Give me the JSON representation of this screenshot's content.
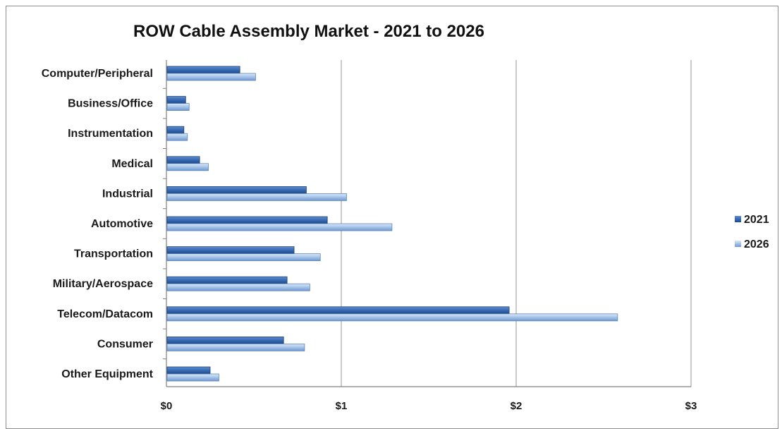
{
  "chart_data": {
    "type": "bar",
    "orientation": "horizontal",
    "title": "ROW Cable Assembly Market - 2021 to 2026",
    "xlabel": "",
    "ylabel": "",
    "xlim": [
      0,
      3
    ],
    "x_ticks": [
      "$0",
      "$1",
      "$2",
      "$3"
    ],
    "grid": "vertical major gridlines",
    "legend_position": "right",
    "categories": [
      "Computer/Peripheral",
      "Business/Office",
      "Instrumentation",
      "Medical",
      "Industrial",
      "Automotive",
      "Transportation",
      "Military/Aerospace",
      "Telecom/Datacom",
      "Consumer",
      "Other Equipment"
    ],
    "series": [
      {
        "name": "2021",
        "color": "#2f5fa8",
        "values": [
          0.42,
          0.11,
          0.1,
          0.19,
          0.8,
          0.92,
          0.73,
          0.69,
          1.96,
          0.67,
          0.25
        ]
      },
      {
        "name": "2026",
        "color": "#8eb3e0",
        "values": [
          0.51,
          0.13,
          0.12,
          0.24,
          1.03,
          1.29,
          0.88,
          0.82,
          2.58,
          0.79,
          0.3
        ]
      }
    ]
  }
}
